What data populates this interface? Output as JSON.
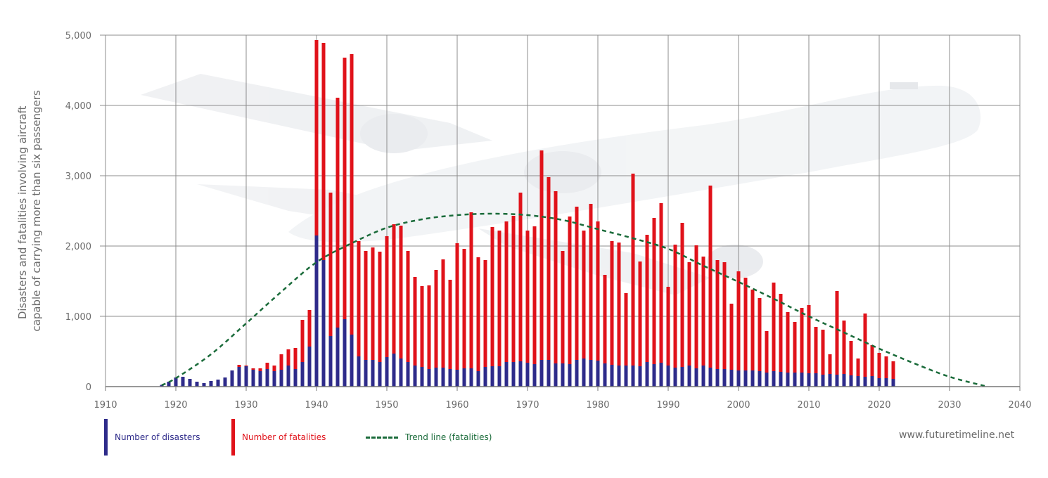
{
  "chart_data": {
    "type": "bar",
    "ylabel_lines": [
      "Disasters and fatalities involving aircraft",
      "capable of carrying more than six passengers"
    ],
    "xlim": [
      1910,
      2040
    ],
    "ylim": [
      0,
      5000
    ],
    "x_ticks": [
      1910,
      1920,
      1930,
      1940,
      1950,
      1960,
      1970,
      1980,
      1990,
      2000,
      2010,
      2020,
      2030,
      2040
    ],
    "x_tick_labels": [
      "1910",
      "1920",
      "1930",
      "1940",
      "1950",
      "1960",
      "1970",
      "1980",
      "1990",
      "2000",
      "2010",
      "2020",
      "2030",
      "2040"
    ],
    "y_ticks": [
      0,
      1000,
      2000,
      3000,
      4000,
      5000
    ],
    "y_tick_labels": [
      "0",
      "1,000",
      "2,000",
      "3,000",
      "4,000",
      "5,000"
    ],
    "grid": true,
    "legend_position": "bottom-left",
    "years": [
      1918,
      1919,
      1920,
      1921,
      1922,
      1923,
      1924,
      1925,
      1926,
      1927,
      1928,
      1929,
      1930,
      1931,
      1932,
      1933,
      1934,
      1935,
      1936,
      1937,
      1938,
      1939,
      1940,
      1941,
      1942,
      1943,
      1944,
      1945,
      1946,
      1947,
      1948,
      1949,
      1950,
      1951,
      1952,
      1953,
      1954,
      1955,
      1956,
      1957,
      1958,
      1959,
      1960,
      1961,
      1962,
      1963,
      1964,
      1965,
      1966,
      1967,
      1968,
      1969,
      1970,
      1971,
      1972,
      1973,
      1974,
      1975,
      1976,
      1977,
      1978,
      1979,
      1980,
      1981,
      1982,
      1983,
      1984,
      1985,
      1986,
      1987,
      1988,
      1989,
      1990,
      1991,
      1992,
      1993,
      1994,
      1995,
      1996,
      1997,
      1998,
      1999,
      2000,
      2001,
      2002,
      2003,
      2004,
      2005,
      2006,
      2007,
      2008,
      2009,
      2010,
      2011,
      2012,
      2013,
      2014,
      2015,
      2016,
      2017,
      2018,
      2019,
      2020,
      2021,
      2022
    ],
    "series": [
      {
        "name": "Number of disasters",
        "color": "#2e2b8a",
        "values": [
          25,
          70,
          130,
          140,
          110,
          70,
          50,
          80,
          100,
          130,
          230,
          280,
          290,
          240,
          220,
          250,
          220,
          240,
          300,
          250,
          350,
          570,
          2150,
          1800,
          720,
          840,
          960,
          740,
          430,
          380,
          380,
          350,
          420,
          470,
          400,
          350,
          300,
          280,
          250,
          270,
          270,
          250,
          240,
          260,
          260,
          220,
          280,
          290,
          290,
          350,
          350,
          360,
          340,
          320,
          380,
          380,
          330,
          330,
          320,
          380,
          400,
          380,
          370,
          330,
          310,
          300,
          300,
          300,
          290,
          350,
          320,
          340,
          300,
          270,
          280,
          300,
          260,
          300,
          270,
          250,
          250,
          240,
          230,
          230,
          230,
          220,
          200,
          220,
          210,
          200,
          200,
          200,
          190,
          190,
          170,
          180,
          170,
          180,
          160,
          150,
          140,
          150,
          120,
          120,
          110
        ]
      },
      {
        "name": "Number of fatalities",
        "color": "#e0121a",
        "values": [
          25,
          70,
          130,
          140,
          110,
          70,
          50,
          80,
          100,
          130,
          230,
          310,
          300,
          260,
          260,
          340,
          300,
          460,
          530,
          550,
          950,
          1090,
          4930,
          4890,
          2760,
          4110,
          4680,
          4730,
          2070,
          1930,
          1980,
          1920,
          2140,
          2310,
          2290,
          1930,
          1560,
          1430,
          1440,
          1660,
          1810,
          1520,
          2040,
          1960,
          2480,
          1840,
          1800,
          2270,
          2220,
          2350,
          2430,
          2760,
          2220,
          2280,
          3360,
          2980,
          2780,
          1930,
          2420,
          2560,
          2220,
          2600,
          2350,
          1590,
          2070,
          2050,
          1330,
          3030,
          1780,
          2160,
          2400,
          2610,
          1420,
          2020,
          2330,
          1770,
          2010,
          1850,
          2860,
          1800,
          1770,
          1180,
          1640,
          1550,
          1380,
          1260,
          790,
          1480,
          1320,
          1060,
          920,
          1120,
          1160,
          850,
          810,
          460,
          1360,
          940,
          650,
          400,
          1040,
          590,
          480,
          430,
          360
        ]
      },
      {
        "name": "Trend line (fatalities)",
        "color": "#1a6b3a",
        "style": "dashed",
        "peak_x": 1966.5,
        "peak_y": 2460,
        "x": [
          1918,
          1920,
          1925,
          1930,
          1935,
          1940,
          1945,
          1950,
          1955,
          1960,
          1965,
          1970,
          1975,
          1980,
          1985,
          1990,
          1995,
          2000,
          2005,
          2010,
          2015,
          2020,
          2025,
          2030,
          2035
        ],
        "values": [
          20,
          120,
          460,
          900,
          1350,
          1770,
          2040,
          2260,
          2380,
          2440,
          2460,
          2440,
          2370,
          2240,
          2110,
          1960,
          1720,
          1490,
          1250,
          1000,
          770,
          540,
          330,
          140,
          10
        ]
      }
    ]
  },
  "credit": "www.futuretimeline.net"
}
